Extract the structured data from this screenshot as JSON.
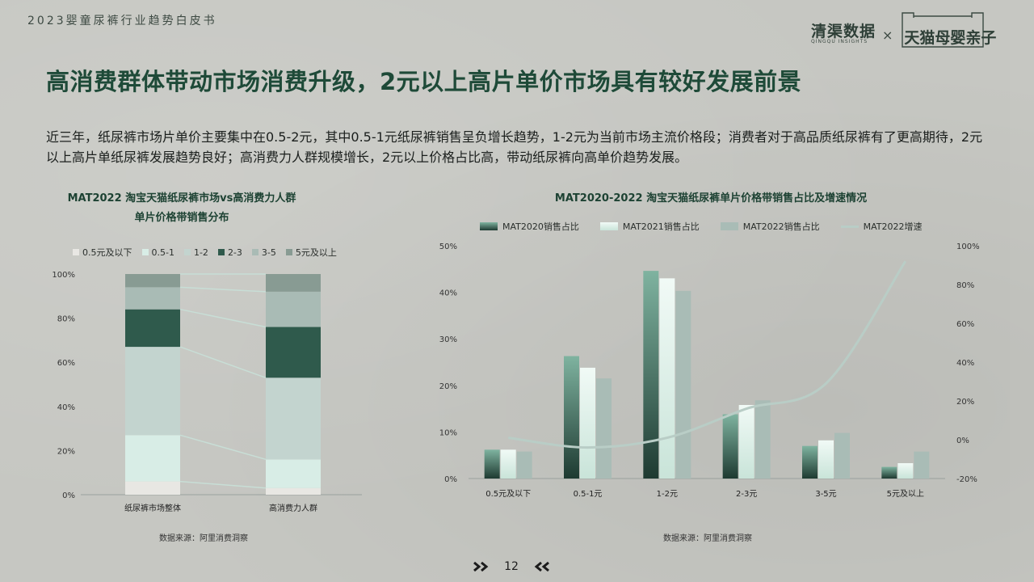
{
  "header": {
    "doc_title": "2023婴童尿裤行业趋势白皮书",
    "brand_left": "清渠数据",
    "brand_left_sub": "QINGQU INSIGHTS",
    "brand_sep": "×",
    "brand_right": "天猫母婴亲子"
  },
  "main": {
    "heading": "高消费群体带动市场消费升级，2元以上高片单价市场具有较好发展前景",
    "summary": "近三年，纸尿裤市场片单价主要集中在0.5-2元，其中0.5-1元纸尿裤销售呈负增长趋势，1-2元为当前市场主流价格段；消费者对于高品质纸尿裤有了更高期待，2元以上高片单纸尿裤发展趋势良好；高消费力人群规模增长，2元以上价格占比高，带动纸尿裤向高单价趋势发展。"
  },
  "left_chart": {
    "title_line1": "MAT2022 淘宝天猫纸尿裤市场vs高消费力人群",
    "title_line2": "单片价格带销售分布",
    "source": "数据来源：阿里消费洞察"
  },
  "right_chart": {
    "title": "MAT2020-2022 淘宝天猫纸尿裤单片价格带销售占比及增速情况",
    "source": "数据来源：阿里消费洞察"
  },
  "footer": {
    "page_number": "12"
  },
  "colors": {
    "dark_green": "#2f5a4c",
    "mid_green": "#7fb09d",
    "light_mint": "#cfe6de",
    "grey_green": "#a9bcb4",
    "line_color": "#b9cdc6",
    "heading_color": "#1e4a38"
  },
  "chart_data": [
    {
      "type": "bar",
      "stacked": true,
      "categories": [
        "纸尿裤市场整体",
        "高消费力人群"
      ],
      "series": [
        {
          "name": "0.5元及以下",
          "values": [
            6,
            3
          ],
          "color": "#e8e7e3"
        },
        {
          "name": "0.5-1",
          "values": [
            21,
            13
          ],
          "color": "#d8ede6"
        },
        {
          "name": "1-2",
          "values": [
            40,
            37
          ],
          "color": "#c3d4cf"
        },
        {
          "name": "2-3",
          "values": [
            17,
            23
          ],
          "color": "#2f5a4c"
        },
        {
          "name": "3-5",
          "values": [
            10,
            16
          ],
          "color": "#a9bbb5"
        },
        {
          "name": "5元及以上",
          "values": [
            6,
            8
          ],
          "color": "#889b93"
        }
      ],
      "yticks": [
        "0%",
        "20%",
        "40%",
        "60%",
        "80%",
        "100%"
      ],
      "ylim": [
        0,
        100
      ],
      "legend": "top"
    },
    {
      "type": "bar",
      "categories": [
        "0.5元及以下",
        "0.5-1元",
        "1-2元",
        "2-3元",
        "3-5元",
        "5元及以上"
      ],
      "series": [
        {
          "name": "MAT2020销售占比",
          "values": [
            6.2,
            26.3,
            44.6,
            13.8,
            7.0,
            2.5
          ],
          "kind": "bar",
          "axis": "left"
        },
        {
          "name": "MAT2021销售占比",
          "values": [
            6.2,
            23.8,
            43.0,
            15.8,
            8.2,
            3.3
          ],
          "kind": "bar",
          "axis": "left"
        },
        {
          "name": "MAT2022销售占比",
          "values": [
            5.8,
            21.5,
            40.3,
            16.8,
            9.8,
            5.8
          ],
          "kind": "bar",
          "axis": "left"
        },
        {
          "name": "MAT2022增速",
          "values": [
            1,
            -4,
            1,
            16,
            29,
            92
          ],
          "kind": "line",
          "axis": "right"
        }
      ],
      "y_left_ticks": [
        "0%",
        "10%",
        "20%",
        "30%",
        "40%",
        "50%"
      ],
      "y_left_lim": [
        0,
        50
      ],
      "y_right_ticks": [
        "-20%",
        "0%",
        "20%",
        "40%",
        "60%",
        "80%",
        "100%"
      ],
      "y_right_lim": [
        -20,
        100
      ],
      "legend": "top"
    }
  ]
}
